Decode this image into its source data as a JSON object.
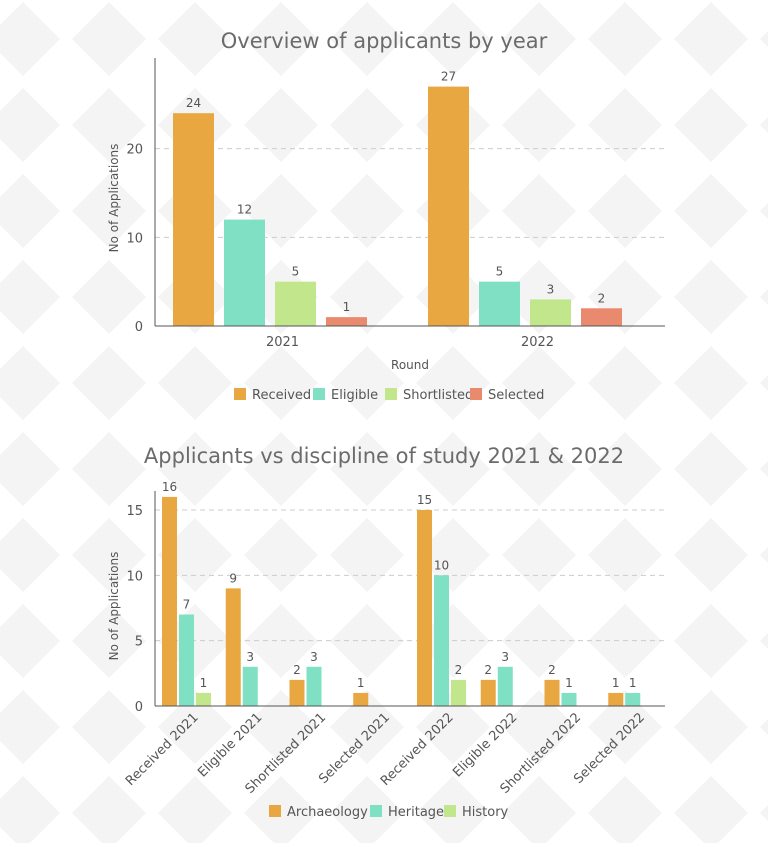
{
  "charts": [
    {
      "type": "bar",
      "title": "Overview of applicants by year",
      "xlabel": "Round",
      "ylabel": "No of Applications",
      "ylim": [
        0,
        30
      ],
      "yticks": [
        "0",
        "10",
        "20"
      ],
      "categories": [
        "2021",
        "2022"
      ],
      "series": [
        {
          "name": "Received",
          "color": "#E8A740",
          "values": [
            24,
            27
          ]
        },
        {
          "name": "Eligible",
          "color": "#7FE0C4",
          "values": [
            12,
            5
          ]
        },
        {
          "name": "Shortlisted",
          "color": "#C2E68B",
          "values": [
            5,
            3
          ]
        },
        {
          "name": "Selected",
          "color": "#E98A6E",
          "values": [
            1,
            2
          ]
        }
      ],
      "legend_position": "bottom",
      "grid": "horizontal-dashed"
    },
    {
      "type": "bar",
      "title": "Applicants vs discipline of study 2021 & 2022",
      "xlabel": "",
      "ylabel": "No of Applications",
      "ylim": [
        0,
        16.3
      ],
      "yticks": [
        "0",
        "5",
        "10",
        "15"
      ],
      "categories": [
        "Received 2021",
        "Eligible 2021",
        "Shortlisted 2021",
        "Selected 2021",
        "Received 2022",
        "Eligible 2022",
        "Shortlisted 2022",
        "Selected 2022"
      ],
      "series": [
        {
          "name": "Archaeology",
          "color": "#E8A740",
          "values": [
            16,
            9,
            2,
            1,
            15,
            2,
            2,
            1
          ]
        },
        {
          "name": "Heritage",
          "color": "#7FE0C4",
          "values": [
            7,
            3,
            3,
            null,
            10,
            3,
            1,
            1
          ]
        },
        {
          "name": "History",
          "color": "#C2E68B",
          "values": [
            1,
            null,
            null,
            null,
            2,
            null,
            null,
            null
          ]
        }
      ],
      "legend_position": "bottom",
      "grid": "horizontal-dashed"
    }
  ]
}
